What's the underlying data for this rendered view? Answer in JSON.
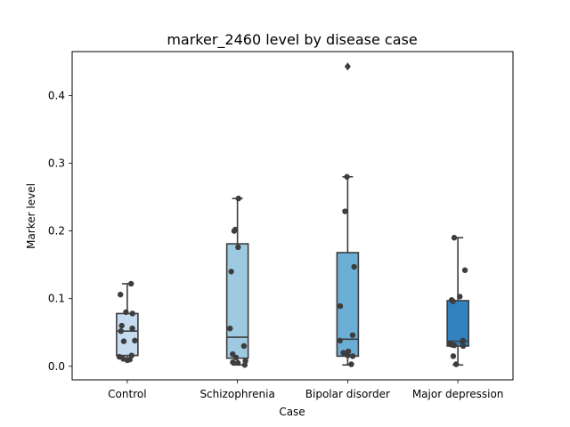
{
  "chart_data": {
    "type": "box",
    "title": "marker_2460 level by disease case",
    "xlabel": "Case",
    "ylabel": "Marker level",
    "ylim": [
      -0.02,
      0.465
    ],
    "yticks": [
      0.0,
      0.1,
      0.2,
      0.3,
      0.4
    ],
    "ytick_labels": [
      "0.0",
      "0.1",
      "0.2",
      "0.3",
      "0.4"
    ],
    "categories": [
      "Control",
      "Schizophrenia",
      "Bipolar disorder",
      "Major depression"
    ],
    "grid": false,
    "series": [
      {
        "category": "Control",
        "color": "#c6dbef",
        "box": {
          "q1": 0.016,
          "median": 0.052,
          "q3": 0.078,
          "whisker_low": 0.009,
          "whisker_high": 0.122
        },
        "outliers": [],
        "points": [
          0.122,
          0.106,
          0.08,
          0.078,
          0.06,
          0.056,
          0.052,
          0.038,
          0.037,
          0.016,
          0.014,
          0.011,
          0.01,
          0.009
        ]
      },
      {
        "category": "Schizophrenia",
        "color": "#9ecae1",
        "box": {
          "q1": 0.012,
          "median": 0.043,
          "q3": 0.181,
          "whisker_low": 0.002,
          "whisker_high": 0.248
        },
        "outliers": [],
        "points": [
          0.248,
          0.202,
          0.2,
          0.176,
          0.14,
          0.056,
          0.03,
          0.018,
          0.013,
          0.008,
          0.006,
          0.005,
          0.002
        ]
      },
      {
        "category": "Bipolar disorder",
        "color": "#6baed6",
        "box": {
          "q1": 0.015,
          "median": 0.04,
          "q3": 0.168,
          "whisker_low": 0.002,
          "whisker_high": 0.28
        },
        "outliers": [
          0.443
        ],
        "points": [
          0.28,
          0.229,
          0.147,
          0.089,
          0.046,
          0.038,
          0.022,
          0.02,
          0.016,
          0.015,
          0.003
        ]
      },
      {
        "category": "Major depression",
        "color": "#3182bd",
        "box": {
          "q1": 0.03,
          "median": 0.037,
          "q3": 0.097,
          "whisker_low": 0.002,
          "whisker_high": 0.19
        },
        "outliers": [],
        "points": [
          0.19,
          0.142,
          0.103,
          0.098,
          0.096,
          0.038,
          0.036,
          0.034,
          0.032,
          0.031,
          0.03,
          0.015,
          0.003
        ]
      }
    ]
  }
}
